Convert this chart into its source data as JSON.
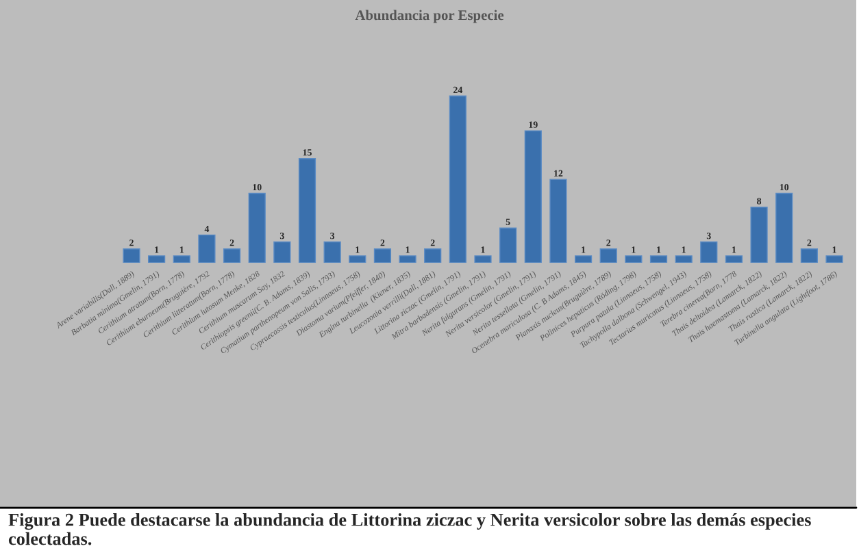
{
  "chart_data": {
    "type": "bar",
    "title": "Abundancia por Especie",
    "categories": [
      "Arene variabilis(Dall, 1889)",
      "Barbatia minima(Gmelin, 1791)",
      "Cerithium atratum(Born, 1778)",
      "Cerithium eburneum(Bruguière, 1792",
      "Cerithium litteratum(Born, 1778)",
      "Cerithium lutosum Menke, 1828",
      "Cerithium muscarum Say, 1832",
      "Cerithiopsis greenii(C. B. Adams, 1839)",
      "Cymatium parthenopeum von Salis, 1793)",
      "Cypraecassis testiculus(Linnaeus, 1758)",
      "Diastoma varium(Pfeiffer, 1840)",
      "Engina turbinella  (Kiener, 1835)",
      "Leucozonia verrilli(Dall, 1881)",
      "Littorina ziczac (Gmelin, 1791)",
      "Mitra barbadensis (Gmelin, 1791)",
      "Nerita fulgurans (Gmelin, 1791)",
      "Nerita versicolor (Gmelin, 1791)",
      "Nerita tessellata (Gmelin, 1791)",
      "Ocenebra mariculosa (C. B Adams, 1845)",
      "Planaxis nucleus(Bruguière, 1789)",
      "Polinices hepaticus (Röding, 1798)",
      "Purpura patula (Linnaeus, 1758)",
      "Tachypolla dalbona (Schwengel, 1943)",
      "Tectarius muricatus (Linnaeus, 1758)",
      "Terebra cinerea(Born, 1778",
      "Thais deltoidea (Lamarck, 1822)",
      "Thais haemastoma (Lamarck, 1822)",
      "Thais rustica (Lamarck, 1822)",
      "Turbinella angulata (Lightfoot, 1786)"
    ],
    "values": [
      2,
      1,
      1,
      4,
      2,
      10,
      3,
      15,
      3,
      1,
      2,
      1,
      2,
      24,
      1,
      5,
      19,
      12,
      1,
      2,
      1,
      1,
      1,
      3,
      1,
      8,
      10,
      2,
      1
    ],
    "color": "#3a70ad",
    "data_labels": true,
    "grid": false,
    "legend": false,
    "annotations": [
      "Figura 2 Puede destacarse la abundancia de Littorina ziczac y Nerita versicolor sobre las demás especies colectadas."
    ]
  }
}
